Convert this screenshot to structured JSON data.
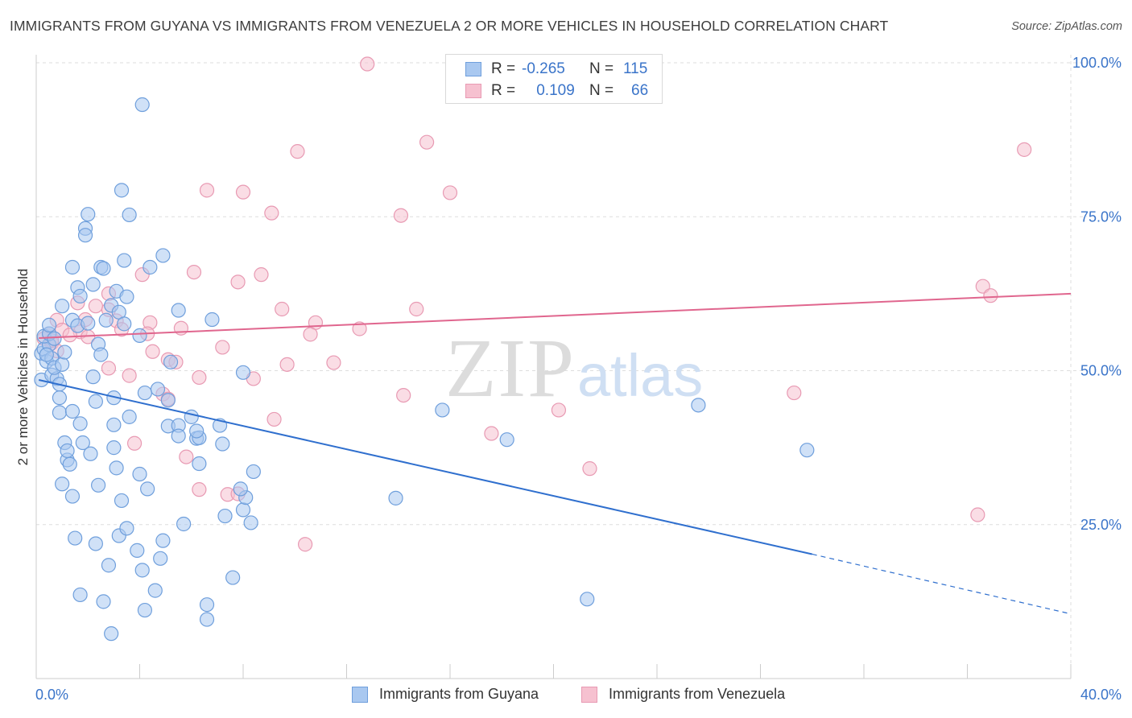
{
  "header": {
    "title": "IMMIGRANTS FROM GUYANA VS IMMIGRANTS FROM VENEZUELA 2 OR MORE VEHICLES IN HOUSEHOLD CORRELATION CHART",
    "source": "Source: ZipAtlas.com"
  },
  "watermark": {
    "zip": "ZIP",
    "atlas": "atlas"
  },
  "legend": {
    "rows": [
      {
        "r_label": "R =",
        "r_value": "-0.265",
        "n_label": "N =",
        "n_value": "115"
      },
      {
        "r_label": "R =",
        "r_value": "0.109",
        "n_label": "N =",
        "n_value": "66"
      }
    ]
  },
  "colors": {
    "blue_fill": "#a9c8f0",
    "blue_stroke": "#6f9fdc",
    "blue_line": "#2f6fce",
    "pink_fill": "#f6c1d0",
    "pink_stroke": "#e89ab3",
    "pink_line": "#e0668e",
    "grid": "#dedede",
    "axis_text": "#3a74c9"
  },
  "chart_data": {
    "type": "scatter",
    "title": "IMMIGRANTS FROM GUYANA VS IMMIGRANTS FROM VENEZUELA 2 OR MORE VEHICLES IN HOUSEHOLD CORRELATION CHART",
    "xlabel": "",
    "ylabel": "2 or more Vehicles in Household",
    "xlim": [
      0,
      40
    ],
    "ylim": [
      0,
      103
    ],
    "x_tick_labels": [
      "0.0%",
      "40.0%"
    ],
    "y_tick_labels": [
      "100.0%",
      "75.0%",
      "50.0%",
      "25.0%"
    ],
    "y_ticks": [
      100,
      75,
      50,
      25
    ],
    "grid": true,
    "legend_position": "top-center",
    "series": [
      {
        "name": "Immigrants from Guyana",
        "color": "#6f9fdc",
        "trend": {
          "x0": 0.1,
          "y0": 48.5,
          "x1": 30.0,
          "y1": 20.2,
          "dash_x1": 40.0,
          "dash_y1": 10.5
        },
        "points": [
          [
            0.2,
            52.8
          ],
          [
            0.3,
            53.5
          ],
          [
            0.4,
            51.5
          ],
          [
            0.5,
            54.2
          ],
          [
            0.6,
            52.0
          ],
          [
            0.3,
            55.6
          ],
          [
            0.5,
            56.0
          ],
          [
            0.7,
            55.2
          ],
          [
            0.2,
            48.5
          ],
          [
            0.6,
            49.3
          ],
          [
            0.8,
            48.7
          ],
          [
            0.7,
            50.5
          ],
          [
            0.4,
            52.6
          ],
          [
            0.9,
            47.8
          ],
          [
            1.0,
            51.0
          ],
          [
            1.1,
            53.0
          ],
          [
            0.9,
            43.2
          ],
          [
            1.4,
            43.4
          ],
          [
            1.1,
            38.3
          ],
          [
            1.2,
            35.5
          ],
          [
            1.3,
            34.8
          ],
          [
            1.0,
            31.6
          ],
          [
            1.4,
            29.6
          ],
          [
            1.5,
            22.8
          ],
          [
            1.7,
            13.6
          ],
          [
            1.8,
            38.3
          ],
          [
            2.3,
            21.9
          ],
          [
            2.4,
            31.4
          ],
          [
            2.6,
            12.5
          ],
          [
            2.9,
            7.3
          ],
          [
            3.0,
            41.2
          ],
          [
            3.2,
            23.2
          ],
          [
            3.3,
            28.9
          ],
          [
            3.5,
            24.4
          ],
          [
            3.6,
            42.5
          ],
          [
            3.9,
            20.8
          ],
          [
            4.1,
            17.6
          ],
          [
            4.2,
            11.1
          ],
          [
            4.3,
            30.8
          ],
          [
            4.6,
            14.3
          ],
          [
            4.8,
            19.5
          ],
          [
            4.9,
            22.4
          ],
          [
            5.1,
            41.0
          ],
          [
            5.5,
            41.1
          ],
          [
            5.7,
            25.1
          ],
          [
            6.0,
            42.5
          ],
          [
            6.2,
            39.0
          ],
          [
            6.3,
            39.1
          ],
          [
            6.3,
            34.9
          ],
          [
            6.6,
            12.0
          ],
          [
            6.6,
            9.6
          ],
          [
            7.1,
            41.1
          ],
          [
            7.2,
            38.1
          ],
          [
            7.3,
            26.4
          ],
          [
            7.6,
            16.4
          ],
          [
            8.0,
            27.4
          ],
          [
            8.1,
            29.4
          ],
          [
            8.3,
            25.3
          ],
          [
            8.4,
            33.6
          ],
          [
            4.1,
            93.2
          ],
          [
            3.3,
            79.3
          ],
          [
            2.0,
            75.4
          ],
          [
            3.6,
            75.3
          ],
          [
            1.9,
            73.1
          ],
          [
            1.9,
            72.0
          ],
          [
            2.2,
            64.0
          ],
          [
            2.5,
            66.8
          ],
          [
            2.6,
            66.6
          ],
          [
            3.1,
            62.9
          ],
          [
            3.4,
            67.9
          ],
          [
            4.4,
            66.8
          ],
          [
            4.9,
            68.7
          ],
          [
            5.5,
            59.8
          ],
          [
            1.4,
            66.8
          ],
          [
            1.6,
            63.5
          ],
          [
            1.7,
            62.1
          ],
          [
            1.0,
            60.5
          ],
          [
            1.4,
            58.2
          ],
          [
            1.6,
            57.3
          ],
          [
            2.0,
            57.7
          ],
          [
            2.4,
            54.3
          ],
          [
            2.5,
            52.6
          ],
          [
            2.9,
            60.6
          ],
          [
            3.2,
            59.5
          ],
          [
            3.4,
            57.6
          ],
          [
            3.5,
            62.0
          ],
          [
            4.0,
            55.7
          ],
          [
            4.2,
            46.4
          ],
          [
            4.7,
            47.0
          ],
          [
            5.1,
            45.2
          ],
          [
            5.2,
            51.4
          ],
          [
            2.3,
            45.0
          ],
          [
            3.0,
            45.6
          ],
          [
            2.2,
            49.0
          ],
          [
            2.7,
            58.2
          ],
          [
            6.8,
            58.3
          ],
          [
            8.0,
            49.7
          ],
          [
            15.7,
            43.6
          ],
          [
            18.2,
            38.8
          ],
          [
            21.3,
            12.9
          ],
          [
            25.6,
            44.4
          ],
          [
            29.8,
            37.1
          ],
          [
            13.9,
            29.3
          ],
          [
            7.9,
            30.8
          ],
          [
            6.2,
            40.2
          ],
          [
            5.5,
            39.4
          ],
          [
            3.0,
            37.5
          ],
          [
            1.7,
            41.4
          ],
          [
            0.9,
            45.6
          ],
          [
            1.2,
            37.0
          ],
          [
            2.1,
            36.5
          ],
          [
            3.1,
            34.2
          ],
          [
            4.0,
            33.2
          ],
          [
            2.8,
            18.4
          ],
          [
            0.5,
            57.4
          ]
        ]
      },
      {
        "name": "Immigrants from Venezuela",
        "color": "#e89ab3",
        "trend": {
          "x0": 0.1,
          "y0": 55.3,
          "x1": 40.0,
          "y1": 62.5
        },
        "points": [
          [
            12.8,
            99.8
          ],
          [
            22.6,
            99.2
          ],
          [
            15.1,
            87.1
          ],
          [
            10.1,
            85.6
          ],
          [
            38.2,
            85.9
          ],
          [
            6.6,
            79.3
          ],
          [
            8.0,
            79.0
          ],
          [
            16.0,
            78.9
          ],
          [
            9.1,
            75.6
          ],
          [
            14.1,
            75.2
          ],
          [
            6.1,
            66.0
          ],
          [
            8.7,
            65.6
          ],
          [
            4.1,
            65.6
          ],
          [
            7.8,
            64.4
          ],
          [
            36.6,
            63.7
          ],
          [
            36.9,
            62.2
          ],
          [
            2.8,
            62.5
          ],
          [
            1.6,
            61.0
          ],
          [
            2.3,
            60.5
          ],
          [
            2.8,
            59.9
          ],
          [
            9.5,
            60.0
          ],
          [
            14.7,
            60.0
          ],
          [
            0.8,
            58.2
          ],
          [
            1.9,
            58.3
          ],
          [
            3.1,
            58.1
          ],
          [
            4.4,
            57.8
          ],
          [
            5.6,
            56.9
          ],
          [
            10.8,
            57.8
          ],
          [
            0.5,
            56.0
          ],
          [
            1.0,
            56.6
          ],
          [
            1.7,
            56.3
          ],
          [
            3.3,
            56.7
          ],
          [
            4.3,
            56.0
          ],
          [
            10.6,
            55.9
          ],
          [
            0.3,
            55.2
          ],
          [
            0.6,
            54.5
          ],
          [
            0.8,
            53.2
          ],
          [
            7.2,
            53.8
          ],
          [
            4.5,
            53.1
          ],
          [
            5.1,
            51.8
          ],
          [
            5.4,
            51.4
          ],
          [
            9.7,
            51.0
          ],
          [
            11.5,
            51.3
          ],
          [
            2.8,
            50.4
          ],
          [
            3.6,
            49.2
          ],
          [
            6.3,
            48.9
          ],
          [
            8.4,
            48.7
          ],
          [
            4.9,
            46.2
          ],
          [
            5.1,
            45.4
          ],
          [
            14.2,
            46.0
          ],
          [
            20.2,
            43.6
          ],
          [
            29.3,
            46.4
          ],
          [
            9.2,
            42.1
          ],
          [
            17.6,
            39.8
          ],
          [
            3.8,
            38.2
          ],
          [
            5.8,
            36.0
          ],
          [
            21.4,
            34.1
          ],
          [
            6.3,
            30.7
          ],
          [
            7.4,
            29.9
          ],
          [
            7.8,
            30.0
          ],
          [
            36.4,
            26.6
          ],
          [
            10.4,
            21.8
          ],
          [
            0.6,
            54.9
          ],
          [
            1.3,
            55.8
          ],
          [
            2.0,
            55.5
          ],
          [
            12.5,
            56.8
          ]
        ]
      }
    ]
  }
}
